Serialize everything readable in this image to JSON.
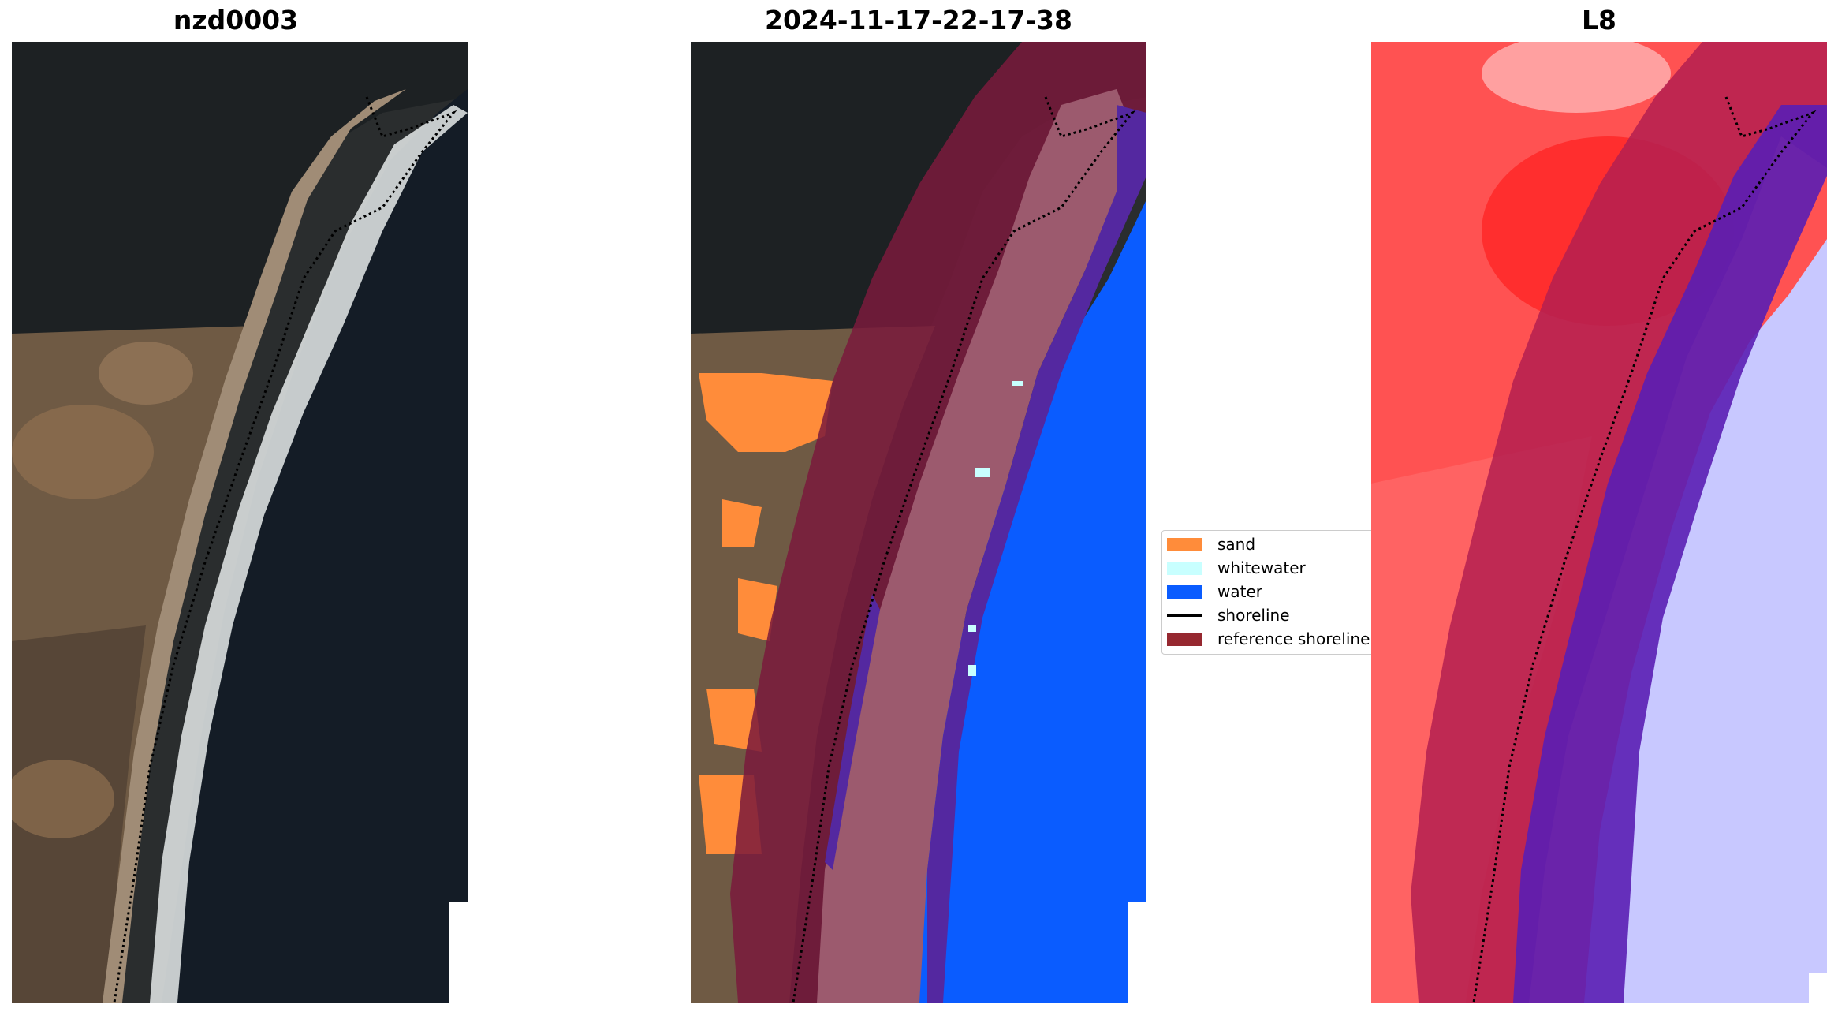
{
  "panels": [
    {
      "title": "nzd0003"
    },
    {
      "title": "2024-11-17-22-17-38"
    },
    {
      "title": "L8"
    }
  ],
  "legend": [
    {
      "label": "sand",
      "color": "#ff8c3a",
      "kind": "patch"
    },
    {
      "label": "whitewater",
      "color": "#c8ffff",
      "kind": "patch"
    },
    {
      "label": "water",
      "color": "#0a5cff",
      "kind": "patch"
    },
    {
      "label": "shoreline",
      "color": "#000000",
      "kind": "line"
    },
    {
      "label": "reference shoreline",
      "color": "#962830",
      "kind": "patch"
    }
  ],
  "colors": {
    "land": "#3a3028",
    "ocean": "#141c26",
    "beach": "#a08c76",
    "surf": "#dfe4e4",
    "index_land": "#ff5252",
    "index_water": "#c8c8ff",
    "classified_sand_over_buffer": "#9c5a6e",
    "classified_water_over_buffer": "#5428a0",
    "reference_buffer": "#7a1a3c"
  }
}
